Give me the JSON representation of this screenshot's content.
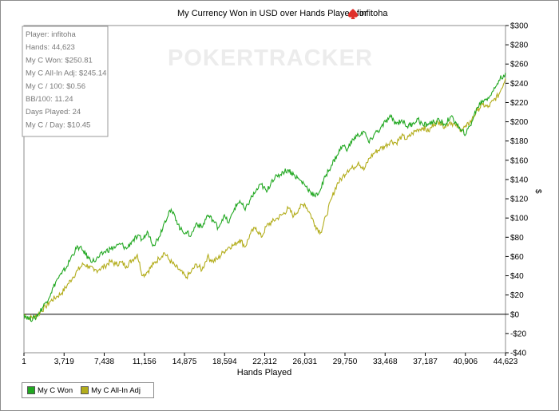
{
  "chart_data": {
    "type": "line",
    "title": "My Currency Won in USD over Hands Played for",
    "title_player": "infitoha",
    "xlabel": "Hands Played",
    "ylabel": "$",
    "xlim": [
      1,
      44623
    ],
    "ylim": [
      -40,
      300
    ],
    "x_ticks": [
      "1",
      "3,719",
      "7,438",
      "11,156",
      "14,875",
      "18,594",
      "22,312",
      "26,031",
      "29,750",
      "33,468",
      "37,187",
      "40,906",
      "44,623"
    ],
    "y_ticks": [
      {
        "value": 300,
        "label": "$300"
      },
      {
        "value": 280,
        "label": "$280"
      },
      {
        "value": 260,
        "label": "$260"
      },
      {
        "value": 240,
        "label": "$240"
      },
      {
        "value": 220,
        "label": "$220"
      },
      {
        "value": 200,
        "label": "$200"
      },
      {
        "value": 180,
        "label": "$180"
      },
      {
        "value": 160,
        "label": "$160"
      },
      {
        "value": 140,
        "label": "$140"
      },
      {
        "value": 120,
        "label": "$120"
      },
      {
        "value": 100,
        "label": "$100"
      },
      {
        "value": 80,
        "label": "$80"
      },
      {
        "value": 60,
        "label": "$60"
      },
      {
        "value": 40,
        "label": "$40"
      },
      {
        "value": 20,
        "label": "$20"
      },
      {
        "value": 0,
        "label": "$0"
      },
      {
        "value": -20,
        "label": "-$20"
      },
      {
        "value": -40,
        "label": "-$40"
      }
    ],
    "grid": false,
    "legend_position": "bottom-left",
    "series": [
      {
        "name": "My C Won",
        "color": "#22a822",
        "points": [
          [
            1,
            0
          ],
          [
            500,
            -5
          ],
          [
            1000,
            -4
          ],
          [
            1500,
            3
          ],
          [
            2000,
            12
          ],
          [
            2500,
            22
          ],
          [
            3000,
            35
          ],
          [
            3500,
            42
          ],
          [
            4000,
            50
          ],
          [
            4500,
            62
          ],
          [
            5000,
            70
          ],
          [
            5500,
            66
          ],
          [
            6000,
            58
          ],
          [
            6500,
            55
          ],
          [
            7000,
            60
          ],
          [
            7500,
            65
          ],
          [
            8000,
            68
          ],
          [
            8500,
            70
          ],
          [
            9000,
            73
          ],
          [
            9500,
            68
          ],
          [
            10000,
            76
          ],
          [
            10500,
            80
          ],
          [
            11000,
            78
          ],
          [
            11500,
            85
          ],
          [
            12000,
            72
          ],
          [
            12500,
            80
          ],
          [
            13000,
            95
          ],
          [
            13500,
            108
          ],
          [
            14000,
            102
          ],
          [
            14500,
            88
          ],
          [
            15000,
            85
          ],
          [
            15500,
            82
          ],
          [
            16000,
            95
          ],
          [
            16500,
            90
          ],
          [
            17000,
            103
          ],
          [
            17500,
            98
          ],
          [
            18000,
            90
          ],
          [
            18500,
            102
          ],
          [
            19000,
            95
          ],
          [
            19500,
            110
          ],
          [
            20000,
            118
          ],
          [
            20500,
            108
          ],
          [
            21000,
            120
          ],
          [
            21500,
            128
          ],
          [
            22000,
            135
          ],
          [
            22500,
            127
          ],
          [
            23000,
            140
          ],
          [
            23500,
            143
          ],
          [
            24000,
            148
          ],
          [
            24500,
            150
          ],
          [
            25000,
            145
          ],
          [
            25500,
            140
          ],
          [
            26000,
            135
          ],
          [
            26500,
            128
          ],
          [
            27000,
            122
          ],
          [
            27500,
            130
          ],
          [
            28000,
            145
          ],
          [
            28500,
            155
          ],
          [
            29000,
            165
          ],
          [
            29500,
            175
          ],
          [
            30000,
            172
          ],
          [
            30500,
            182
          ],
          [
            31000,
            186
          ],
          [
            31500,
            190
          ],
          [
            32000,
            178
          ],
          [
            32500,
            188
          ],
          [
            33000,
            192
          ],
          [
            33500,
            200
          ],
          [
            34000,
            205
          ],
          [
            34500,
            198
          ],
          [
            35000,
            202
          ],
          [
            35500,
            195
          ],
          [
            36000,
            198
          ],
          [
            36500,
            203
          ],
          [
            37000,
            196
          ],
          [
            37500,
            198
          ],
          [
            38000,
            200
          ],
          [
            38500,
            201
          ],
          [
            39000,
            197
          ],
          [
            39500,
            205
          ],
          [
            40000,
            200
          ],
          [
            40500,
            190
          ],
          [
            41000,
            188
          ],
          [
            41500,
            200
          ],
          [
            42000,
            215
          ],
          [
            42500,
            222
          ],
          [
            43000,
            225
          ],
          [
            43500,
            232
          ],
          [
            44000,
            243
          ],
          [
            44623,
            250.81
          ]
        ]
      },
      {
        "name": "My C All-In Adj",
        "color": "#b3ad1c",
        "points": [
          [
            1,
            0
          ],
          [
            500,
            -4
          ],
          [
            1000,
            -3
          ],
          [
            1500,
            2
          ],
          [
            2000,
            8
          ],
          [
            2500,
            14
          ],
          [
            3000,
            18
          ],
          [
            3500,
            22
          ],
          [
            4000,
            30
          ],
          [
            4500,
            38
          ],
          [
            5000,
            46
          ],
          [
            5500,
            52
          ],
          [
            6000,
            50
          ],
          [
            6500,
            45
          ],
          [
            7000,
            47
          ],
          [
            7500,
            50
          ],
          [
            8000,
            55
          ],
          [
            8500,
            52
          ],
          [
            9000,
            54
          ],
          [
            9500,
            50
          ],
          [
            10000,
            56
          ],
          [
            10500,
            62
          ],
          [
            11000,
            40
          ],
          [
            11500,
            45
          ],
          [
            12000,
            52
          ],
          [
            12500,
            58
          ],
          [
            13000,
            64
          ],
          [
            13500,
            56
          ],
          [
            14000,
            50
          ],
          [
            14500,
            45
          ],
          [
            15000,
            38
          ],
          [
            15500,
            44
          ],
          [
            16000,
            52
          ],
          [
            16500,
            46
          ],
          [
            17000,
            60
          ],
          [
            17500,
            55
          ],
          [
            18000,
            58
          ],
          [
            18500,
            65
          ],
          [
            19000,
            70
          ],
          [
            19500,
            72
          ],
          [
            20000,
            78
          ],
          [
            20500,
            70
          ],
          [
            21000,
            84
          ],
          [
            21500,
            90
          ],
          [
            22000,
            80
          ],
          [
            22500,
            92
          ],
          [
            23000,
            96
          ],
          [
            23500,
            100
          ],
          [
            24000,
            104
          ],
          [
            24500,
            110
          ],
          [
            25000,
            102
          ],
          [
            25500,
            110
          ],
          [
            26000,
            115
          ],
          [
            26500,
            105
          ],
          [
            27000,
            92
          ],
          [
            27500,
            85
          ],
          [
            28000,
            102
          ],
          [
            28500,
            120
          ],
          [
            29000,
            135
          ],
          [
            29500,
            142
          ],
          [
            30000,
            150
          ],
          [
            30500,
            152
          ],
          [
            31000,
            158
          ],
          [
            31500,
            150
          ],
          [
            32000,
            162
          ],
          [
            32500,
            168
          ],
          [
            33000,
            172
          ],
          [
            33500,
            175
          ],
          [
            34000,
            180
          ],
          [
            34500,
            178
          ],
          [
            35000,
            185
          ],
          [
            35500,
            182
          ],
          [
            36000,
            188
          ],
          [
            36500,
            192
          ],
          [
            37000,
            194
          ],
          [
            37500,
            190
          ],
          [
            38000,
            198
          ],
          [
            38500,
            200
          ],
          [
            39000,
            195
          ],
          [
            39500,
            200
          ],
          [
            40000,
            196
          ],
          [
            40500,
            192
          ],
          [
            41000,
            195
          ],
          [
            41500,
            202
          ],
          [
            42000,
            212
          ],
          [
            42500,
            218
          ],
          [
            43000,
            215
          ],
          [
            43500,
            222
          ],
          [
            44000,
            228
          ],
          [
            44623,
            245.14
          ]
        ]
      }
    ]
  },
  "stats": [
    "Player: infitoha",
    "Hands: 44,623",
    "My C Won: $250.81",
    "My C All-In Adj: $245.14",
    "My C / 100: $0.56",
    "BB/100: 11.24",
    "Days Played: 24",
    "My C / Day: $10.45"
  ],
  "watermark": "POKERTRACKER",
  "legend": {
    "won_label": "My C Won",
    "allin_label": "My C All-In Adj",
    "won_color": "#22a822",
    "allin_color": "#b3ad1c"
  },
  "icons": {
    "title_icon": "spade-icon"
  }
}
